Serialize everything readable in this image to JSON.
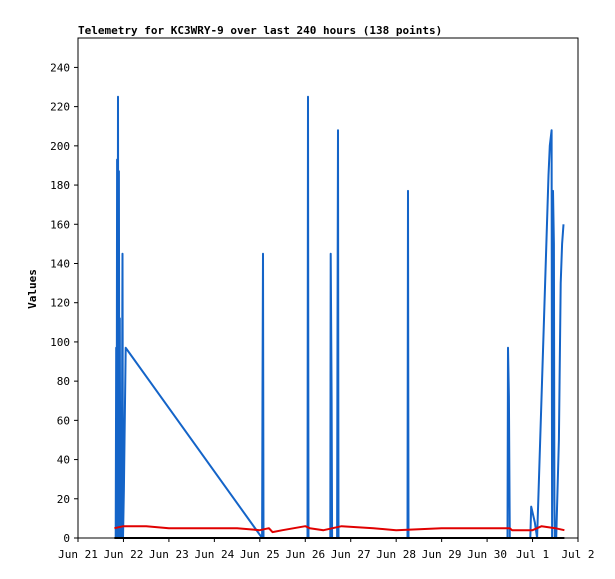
{
  "chart_data": {
    "type": "line",
    "title": "Telemetry for KC3WRY-9 over last 240 hours (138 points)",
    "xlabel": "",
    "ylabel": "Values",
    "x_tick_labels": [
      "Jun 21",
      "Jun 22",
      "Jun 23",
      "Jun 24",
      "Jun 25",
      "Jun 26",
      "Jun 27",
      "Jun 28",
      "Jun 29",
      "Jun 30",
      "Jul 1",
      "Jul 2"
    ],
    "y_ticks": [
      0,
      20,
      40,
      60,
      80,
      100,
      120,
      140,
      160,
      180,
      200,
      220,
      240
    ],
    "xlim": [
      0,
      11
    ],
    "ylim": [
      0,
      255
    ],
    "grid": false,
    "legend": "none",
    "series": [
      {
        "color": "#1464c8",
        "points": [
          [
            0.83,
            0
          ],
          [
            0.84,
            97
          ],
          [
            0.85,
            0
          ],
          [
            0.86,
            193
          ],
          [
            0.87,
            0
          ],
          [
            0.88,
            225
          ],
          [
            0.89,
            0
          ],
          [
            0.9,
            187
          ],
          [
            0.91,
            0
          ],
          [
            0.92,
            112
          ],
          [
            0.93,
            0
          ],
          [
            0.95,
            49
          ],
          [
            0.96,
            0
          ],
          [
            0.98,
            145
          ],
          [
            0.99,
            0
          ],
          [
            1.01,
            25
          ],
          [
            1.05,
            97
          ],
          [
            4.05,
            0
          ],
          [
            4.06,
            73
          ],
          [
            4.07,
            145
          ],
          [
            4.08,
            0
          ],
          [
            5.05,
            0
          ],
          [
            5.06,
            225
          ],
          [
            5.07,
            0
          ],
          [
            5.55,
            0
          ],
          [
            5.56,
            145
          ],
          [
            5.58,
            72
          ],
          [
            5.59,
            0
          ],
          [
            5.7,
            0
          ],
          [
            5.71,
            105
          ],
          [
            5.72,
            208
          ],
          [
            5.73,
            0
          ],
          [
            7.25,
            0
          ],
          [
            7.26,
            177
          ],
          [
            7.27,
            0
          ],
          [
            9.45,
            0
          ],
          [
            9.46,
            97
          ],
          [
            9.48,
            72
          ],
          [
            9.5,
            0
          ],
          [
            9.95,
            0
          ],
          [
            9.97,
            16
          ],
          [
            10.05,
            8
          ],
          [
            10.1,
            0
          ],
          [
            10.25,
            110
          ],
          [
            10.35,
            185
          ],
          [
            10.38,
            200
          ],
          [
            10.42,
            208
          ],
          [
            10.43,
            0
          ],
          [
            10.45,
            177
          ],
          [
            10.47,
            150
          ],
          [
            10.48,
            20
          ],
          [
            10.49,
            0
          ],
          [
            10.52,
            0
          ],
          [
            10.58,
            50
          ],
          [
            10.62,
            130
          ],
          [
            10.65,
            150
          ],
          [
            10.68,
            160
          ]
        ]
      },
      {
        "color": "#e00000",
        "points": [
          [
            0.8,
            5
          ],
          [
            1.0,
            6
          ],
          [
            1.5,
            6
          ],
          [
            2.0,
            5
          ],
          [
            3.5,
            5
          ],
          [
            4.0,
            4
          ],
          [
            4.2,
            5
          ],
          [
            4.28,
            3
          ],
          [
            4.5,
            4
          ],
          [
            5.0,
            6
          ],
          [
            5.1,
            5
          ],
          [
            5.4,
            4
          ],
          [
            5.8,
            6
          ],
          [
            6.5,
            5
          ],
          [
            7.0,
            4
          ],
          [
            8.0,
            5
          ],
          [
            9.5,
            5
          ],
          [
            9.55,
            4
          ],
          [
            10.0,
            4
          ],
          [
            10.2,
            6
          ],
          [
            10.5,
            5
          ],
          [
            10.7,
            4
          ]
        ]
      },
      {
        "color": "#000000",
        "points": [
          [
            0.8,
            0
          ],
          [
            10.7,
            0
          ]
        ]
      }
    ]
  }
}
